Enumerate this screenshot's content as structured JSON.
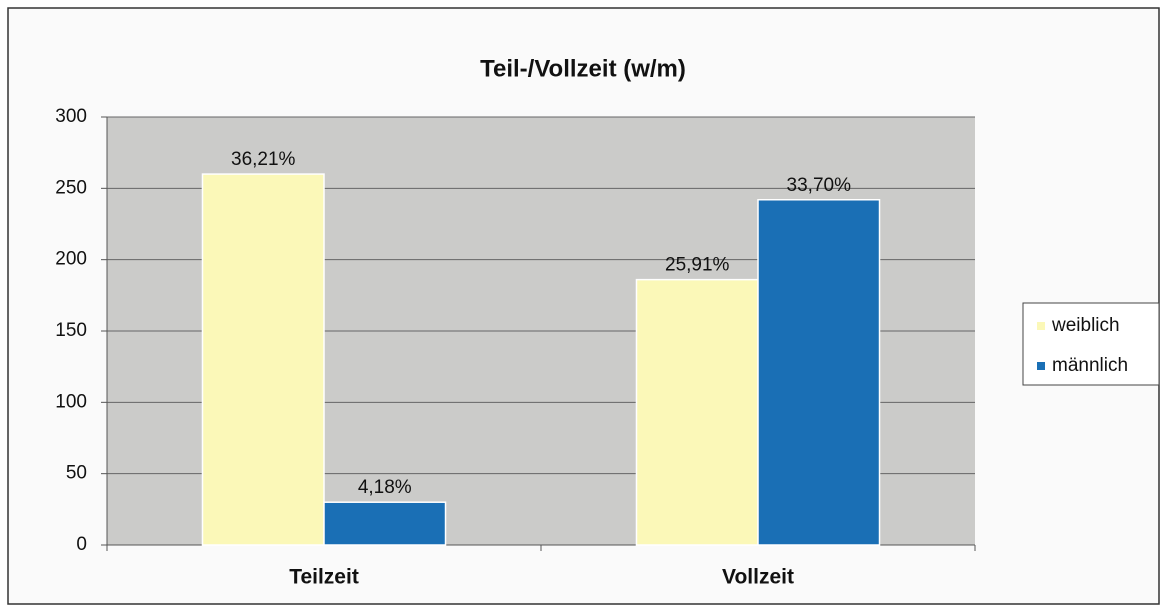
{
  "chart_data": {
    "type": "bar",
    "title": "Teil-/Vollzeit (w/m)",
    "categories": [
      "Teilzeit",
      "Vollzeit"
    ],
    "series": [
      {
        "name": "weiblich",
        "color": "#fbf8b8",
        "values": [
          260,
          186
        ],
        "value_labels": [
          "36,21%",
          "25,91%"
        ]
      },
      {
        "name": "männlich",
        "color": "#1a6fb5",
        "values": [
          30,
          242
        ],
        "value_labels": [
          "4,18%",
          "33,70%"
        ]
      }
    ],
    "ylim": [
      0,
      300
    ],
    "yticks": [
      0,
      50,
      100,
      150,
      200,
      250,
      300
    ],
    "grid": true,
    "legend": "right"
  }
}
